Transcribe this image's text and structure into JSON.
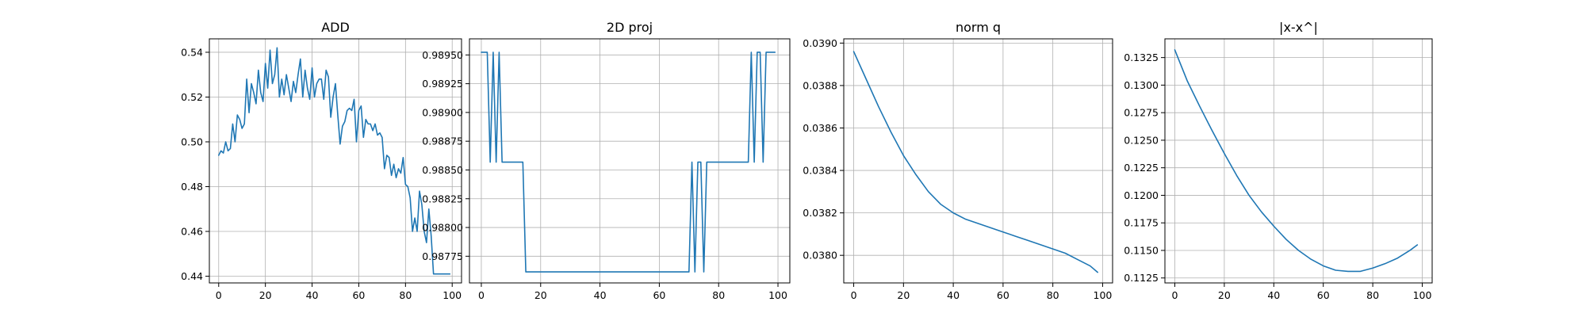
{
  "chart_data": [
    {
      "type": "line",
      "title": "ADD",
      "xlabel": "",
      "ylabel": "",
      "xlim": [
        -4,
        104
      ],
      "ylim": [
        0.437,
        0.546
      ],
      "xticks": [
        0,
        20,
        40,
        60,
        80,
        100
      ],
      "xtick_labels": [
        "0",
        "20",
        "40",
        "60",
        "80",
        "100"
      ],
      "yticks": [
        0.44,
        0.46,
        0.48,
        0.5,
        0.52,
        0.54
      ],
      "ytick_labels": [
        "0.44",
        "0.46",
        "0.48",
        "0.50",
        "0.52",
        "0.54"
      ],
      "grid": true,
      "color": "#1f77b4",
      "series": [
        {
          "x": [
            0,
            1,
            2,
            3,
            4,
            5,
            6,
            7,
            8,
            9,
            10,
            11,
            12,
            13,
            14,
            15,
            16,
            17,
            18,
            19,
            20,
            21,
            22,
            23,
            24,
            25,
            26,
            27,
            28,
            29,
            30,
            31,
            32,
            33,
            34,
            35,
            36,
            37,
            38,
            39,
            40,
            41,
            42,
            43,
            44,
            45,
            46,
            47,
            48,
            49,
            50,
            51,
            52,
            53,
            54,
            55,
            56,
            57,
            58,
            59,
            60,
            61,
            62,
            63,
            64,
            65,
            66,
            67,
            68,
            69,
            70,
            71,
            72,
            73,
            74,
            75,
            76,
            77,
            78,
            79,
            80,
            81,
            82,
            83,
            84,
            85,
            86,
            87,
            88,
            89,
            90,
            91,
            92,
            93,
            94,
            95,
            96,
            97,
            98,
            99
          ],
          "y": [
            0.494,
            0.496,
            0.495,
            0.5,
            0.496,
            0.497,
            0.508,
            0.5,
            0.512,
            0.51,
            0.506,
            0.508,
            0.528,
            0.513,
            0.526,
            0.522,
            0.517,
            0.532,
            0.522,
            0.518,
            0.535,
            0.524,
            0.541,
            0.526,
            0.53,
            0.542,
            0.52,
            0.528,
            0.521,
            0.53,
            0.524,
            0.518,
            0.527,
            0.522,
            0.53,
            0.537,
            0.52,
            0.532,
            0.524,
            0.519,
            0.533,
            0.52,
            0.526,
            0.528,
            0.528,
            0.519,
            0.532,
            0.529,
            0.511,
            0.52,
            0.526,
            0.512,
            0.499,
            0.507,
            0.509,
            0.514,
            0.515,
            0.514,
            0.519,
            0.5,
            0.514,
            0.516,
            0.502,
            0.51,
            0.508,
            0.508,
            0.505,
            0.508,
            0.503,
            0.504,
            0.502,
            0.488,
            0.494,
            0.493,
            0.485,
            0.49,
            0.484,
            0.488,
            0.486,
            0.493,
            0.481,
            0.48,
            0.475,
            0.46,
            0.466,
            0.46,
            0.478,
            0.472,
            0.46,
            0.455,
            0.47,
            0.458,
            0.441,
            0.441,
            0.441,
            0.441,
            0.441,
            0.441,
            0.441,
            0.441
          ]
        }
      ]
    },
    {
      "type": "line",
      "title": "2D proj",
      "xlabel": "",
      "ylabel": "",
      "xlim": [
        -4,
        104
      ],
      "ylim": [
        0.987518,
        0.98964
      ],
      "xticks": [
        0,
        20,
        40,
        60,
        80,
        100
      ],
      "xtick_labels": [
        "0",
        "20",
        "40",
        "60",
        "80",
        "100"
      ],
      "yticks": [
        0.98775,
        0.988,
        0.98825,
        0.9885,
        0.98875,
        0.989,
        0.98925,
        0.9895
      ],
      "ytick_labels": [
        "0.98775",
        "0.98800",
        "0.98825",
        "0.98850",
        "0.98875",
        "0.98900",
        "0.98925",
        "0.98950"
      ],
      "grid": true,
      "color": "#1f77b4",
      "series": [
        {
          "x": [
            0,
            1,
            2,
            3,
            4,
            5,
            6,
            7,
            8,
            9,
            10,
            11,
            12,
            13,
            14,
            15,
            16,
            17,
            18,
            19,
            20,
            21,
            22,
            23,
            24,
            25,
            26,
            27,
            28,
            29,
            30,
            31,
            32,
            33,
            34,
            35,
            36,
            37,
            38,
            39,
            40,
            41,
            42,
            43,
            44,
            45,
            46,
            47,
            48,
            49,
            50,
            51,
            52,
            53,
            54,
            55,
            56,
            57,
            58,
            59,
            60,
            61,
            62,
            63,
            64,
            65,
            66,
            67,
            68,
            69,
            70,
            71,
            72,
            73,
            74,
            75,
            76,
            77,
            78,
            79,
            80,
            81,
            82,
            83,
            84,
            85,
            86,
            87,
            88,
            89,
            90,
            91,
            92,
            93,
            94,
            95,
            96,
            97,
            98,
            99
          ],
          "y": [
            0.989523,
            0.989523,
            0.989523,
            0.988568,
            0.989523,
            0.988568,
            0.989523,
            0.988568,
            0.988568,
            0.988568,
            0.988568,
            0.988568,
            0.988568,
            0.988568,
            0.988568,
            0.987614,
            0.987614,
            0.987614,
            0.987614,
            0.987614,
            0.987614,
            0.987614,
            0.987614,
            0.987614,
            0.987614,
            0.987614,
            0.987614,
            0.987614,
            0.987614,
            0.987614,
            0.987614,
            0.987614,
            0.987614,
            0.987614,
            0.987614,
            0.987614,
            0.987614,
            0.987614,
            0.987614,
            0.987614,
            0.987614,
            0.987614,
            0.987614,
            0.987614,
            0.987614,
            0.987614,
            0.987614,
            0.987614,
            0.987614,
            0.987614,
            0.987614,
            0.987614,
            0.987614,
            0.987614,
            0.987614,
            0.987614,
            0.987614,
            0.987614,
            0.987614,
            0.987614,
            0.987614,
            0.987614,
            0.987614,
            0.987614,
            0.987614,
            0.987614,
            0.987614,
            0.987614,
            0.987614,
            0.987614,
            0.987614,
            0.988568,
            0.987614,
            0.988568,
            0.988568,
            0.987614,
            0.988568,
            0.988568,
            0.988568,
            0.988568,
            0.988568,
            0.988568,
            0.988568,
            0.988568,
            0.988568,
            0.988568,
            0.988568,
            0.988568,
            0.988568,
            0.988568,
            0.988568,
            0.989523,
            0.988568,
            0.989523,
            0.989523,
            0.988568,
            0.989523,
            0.989523,
            0.989523,
            0.989523
          ]
        }
      ]
    },
    {
      "type": "line",
      "title": "norm q",
      "xlabel": "",
      "ylabel": "",
      "xlim": [
        -4,
        104
      ],
      "ylim": [
        0.03787,
        0.03902
      ],
      "xticks": [
        0,
        20,
        40,
        60,
        80,
        100
      ],
      "xtick_labels": [
        "0",
        "20",
        "40",
        "60",
        "80",
        "100"
      ],
      "yticks": [
        0.038,
        0.0382,
        0.0384,
        0.0386,
        0.0388,
        0.039
      ],
      "ytick_labels": [
        "0.0380",
        "0.0382",
        "0.0384",
        "0.0386",
        "0.0388",
        "0.0390"
      ],
      "grid": true,
      "color": "#1f77b4",
      "series": [
        {
          "x": [
            0,
            5,
            10,
            15,
            20,
            25,
            30,
            35,
            40,
            45,
            50,
            55,
            60,
            65,
            70,
            75,
            80,
            85,
            90,
            95,
            98
          ],
          "y": [
            0.03896,
            0.03883,
            0.0387,
            0.03858,
            0.03847,
            0.03838,
            0.0383,
            0.03824,
            0.0382,
            0.03817,
            0.03815,
            0.03813,
            0.03811,
            0.03809,
            0.03807,
            0.03805,
            0.03803,
            0.03801,
            0.03798,
            0.03795,
            0.03792
          ]
        }
      ]
    },
    {
      "type": "line",
      "title": "|x-x^|",
      "xlabel": "",
      "ylabel": "",
      "xlim": [
        -4,
        104
      ],
      "ylim": [
        0.11205,
        0.1342
      ],
      "xticks": [
        0,
        20,
        40,
        60,
        80,
        100
      ],
      "xtick_labels": [
        "0",
        "20",
        "40",
        "60",
        "80",
        "100"
      ],
      "yticks": [
        0.1125,
        0.115,
        0.1175,
        0.12,
        0.1225,
        0.125,
        0.1275,
        0.13,
        0.1325
      ],
      "ytick_labels": [
        "0.1125",
        "0.1150",
        "0.1175",
        "0.1200",
        "0.1225",
        "0.1250",
        "0.1275",
        "0.1300",
        "0.1325"
      ],
      "grid": true,
      "color": "#1f77b4",
      "series": [
        {
          "x": [
            0,
            5,
            10,
            15,
            20,
            25,
            30,
            35,
            40,
            45,
            50,
            55,
            60,
            65,
            70,
            75,
            80,
            85,
            90,
            95,
            98
          ],
          "y": [
            0.1332,
            0.1304,
            0.1281,
            0.1259,
            0.1238,
            0.1218,
            0.12,
            0.1185,
            0.1172,
            0.116,
            0.115,
            0.1142,
            0.1136,
            0.1132,
            0.1131,
            0.1131,
            0.1134,
            0.1138,
            0.1143,
            0.115,
            0.1155
          ]
        }
      ]
    }
  ]
}
